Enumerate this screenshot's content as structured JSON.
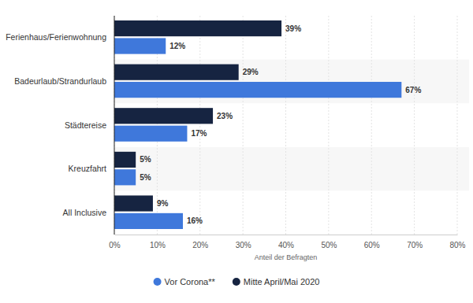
{
  "chart_data": {
    "type": "bar",
    "orientation": "horizontal",
    "categories": [
      "Ferienhaus/Ferienwohnung",
      "Badeurlaub/Strandurlaub",
      "Städtereise",
      "Kreuzfahrt",
      "All Inclusive"
    ],
    "series": [
      {
        "name": "Vor Corona**",
        "color": "#3f78db",
        "values": [
          12,
          67,
          17,
          5,
          16
        ],
        "value_labels": [
          "12%",
          "67%",
          "17%",
          "5%",
          "16%"
        ]
      },
      {
        "name": "Mitte April/Mai 2020",
        "color": "#162441",
        "values": [
          39,
          29,
          23,
          5,
          9
        ],
        "value_labels": [
          "39%",
          "29%",
          "23%",
          "5%",
          "9%"
        ]
      }
    ],
    "x_label": "Anteil der Befragten",
    "xlim": [
      0,
      80
    ],
    "xticks": [
      {
        "value": 0,
        "label": "0%"
      },
      {
        "value": 10,
        "label": "10%"
      },
      {
        "value": 20,
        "label": "20%"
      },
      {
        "value": 30,
        "label": "30%"
      },
      {
        "value": 40,
        "label": "40%"
      },
      {
        "value": 50,
        "label": "50%"
      },
      {
        "value": 60,
        "label": "60%"
      },
      {
        "value": 70,
        "label": "70%"
      },
      {
        "value": 80,
        "label": "80%"
      }
    ],
    "grid": true,
    "legend": "bottom",
    "data_labels": true
  }
}
